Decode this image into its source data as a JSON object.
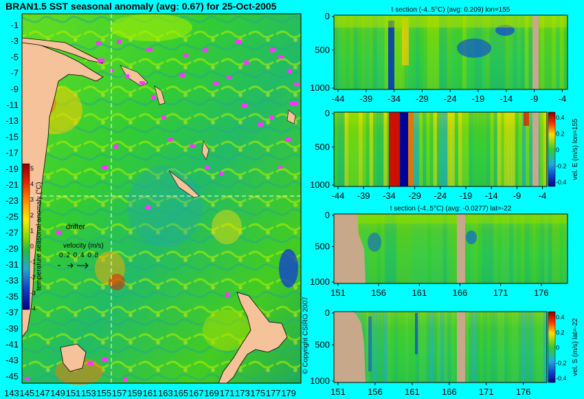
{
  "map": {
    "title": "BRAN1.5 SST seasonal anomaly (avg: 0.67) for 25-Oct-2005",
    "lat_labels": [
      "-1",
      "-3",
      "-5",
      "-7",
      "-9",
      "-11",
      "-13",
      "-15",
      "-17",
      "-19",
      "-21",
      "-23",
      "-25",
      "-27",
      "-29",
      "-31",
      "-33",
      "-35",
      "-37",
      "-39",
      "-41",
      "-43",
      "-45"
    ],
    "lon_labels": [
      "143",
      "145",
      "147",
      "149",
      "151",
      "153",
      "155",
      "157",
      "159",
      "161",
      "163",
      "165",
      "167",
      "169",
      "171",
      "173",
      "175",
      "177",
      "179"
    ],
    "colorbar": {
      "label": "temperature seasonal anomaly (°C)",
      "ticks": [
        "5",
        "4",
        "3",
        "2",
        "1",
        "0",
        "-1",
        "-2",
        "-3",
        "-4"
      ]
    },
    "drifter_label": "drifter",
    "velocity_label": "velocity (m/s)",
    "velocity_scale": "0.2 0.4 0.8",
    "copyright": "© Copyright CSIRO 2007"
  },
  "panels": [
    {
      "title": "t section (-4..5°C) (avg: 0.209) lon=155",
      "y_ticks": [
        "0",
        "500",
        "1000"
      ],
      "x_ticks": [
        "-44",
        "-39",
        "-34",
        "-29",
        "-24",
        "-19",
        "-14",
        "-9",
        "-4"
      ],
      "side_label": ""
    },
    {
      "title": "",
      "y_ticks": [
        "0",
        "500",
        "1000"
      ],
      "x_ticks": [
        "-44",
        "-39",
        "-34",
        "-29",
        "-24",
        "-19",
        "-14",
        "-9",
        "-4"
      ],
      "side_label": "vel. E (m/s) lon=155",
      "cb_ticks": [
        "0.4",
        "0.2",
        "0",
        "-0.2",
        "-0.4"
      ]
    },
    {
      "title": "t section (-4..5°C) (avg: -0.0277) lat=-22",
      "y_ticks": [
        "0",
        "500",
        "1000"
      ],
      "x_ticks": [
        "151",
        "156",
        "161",
        "166",
        "171",
        "176"
      ],
      "side_label": ""
    },
    {
      "title": "",
      "y_ticks": [
        "0",
        "500",
        "1000"
      ],
      "x_ticks": [
        "151",
        "156",
        "161",
        "166",
        "171",
        "176"
      ],
      "side_label": "vel. S (m/s) lat=-22",
      "cb_ticks": [
        "0.4",
        "0.2",
        "0",
        "-0.2",
        "-0.4"
      ]
    }
  ],
  "colors": {
    "background": "#00ffff",
    "land": "#f5c29a",
    "ocean_base": "#33cc33",
    "section_land": "#c8a88a",
    "drifter": "#ff33ff"
  }
}
